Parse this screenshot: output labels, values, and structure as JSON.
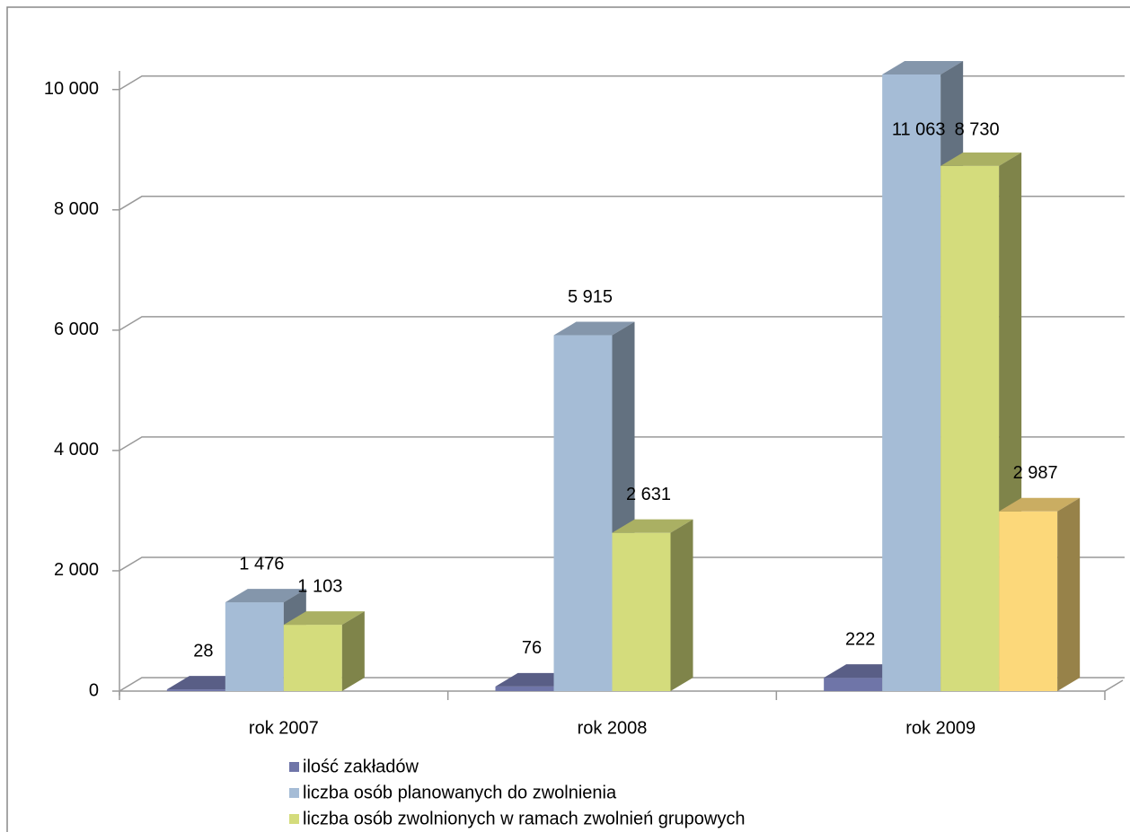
{
  "chart_data": {
    "type": "bar3d",
    "categories": [
      "rok 2007",
      "rok 2008",
      "rok 2009"
    ],
    "series": [
      {
        "name": "ilość zakładów",
        "color": "#6f75a8",
        "values": [
          28,
          76,
          222
        ],
        "value_labels": [
          "28",
          "76",
          "222"
        ]
      },
      {
        "name": "liczba osób planowanych do zwolnienia",
        "color": "#a5bcd6",
        "values": [
          1476,
          5915,
          11063
        ],
        "value_labels": [
          "1 476",
          "5 915",
          "11 063"
        ]
      },
      {
        "name": "liczba osób zwolnionych w ramach zwolnień grupowych",
        "color": "#d4dc7c",
        "values": [
          1103,
          2631,
          8730
        ],
        "value_labels": [
          "1 103",
          "2 631",
          "8 730"
        ]
      },
      {
        "color": "#fcd87a",
        "values": [
          null,
          null,
          2987
        ],
        "value_labels": [
          null,
          null,
          "2 987"
        ]
      }
    ],
    "ylim": [
      0,
      10250
    ],
    "yticks": [
      0,
      {
        "value": 2000,
        "label": "2 000"
      },
      {
        "value": 4000,
        "label": "4 000"
      },
      {
        "value": 6000,
        "label": "6 000"
      },
      {
        "value": 8000,
        "label": "8 000"
      },
      {
        "value": 10000,
        "label": "10 000"
      }
    ],
    "grid": true
  }
}
